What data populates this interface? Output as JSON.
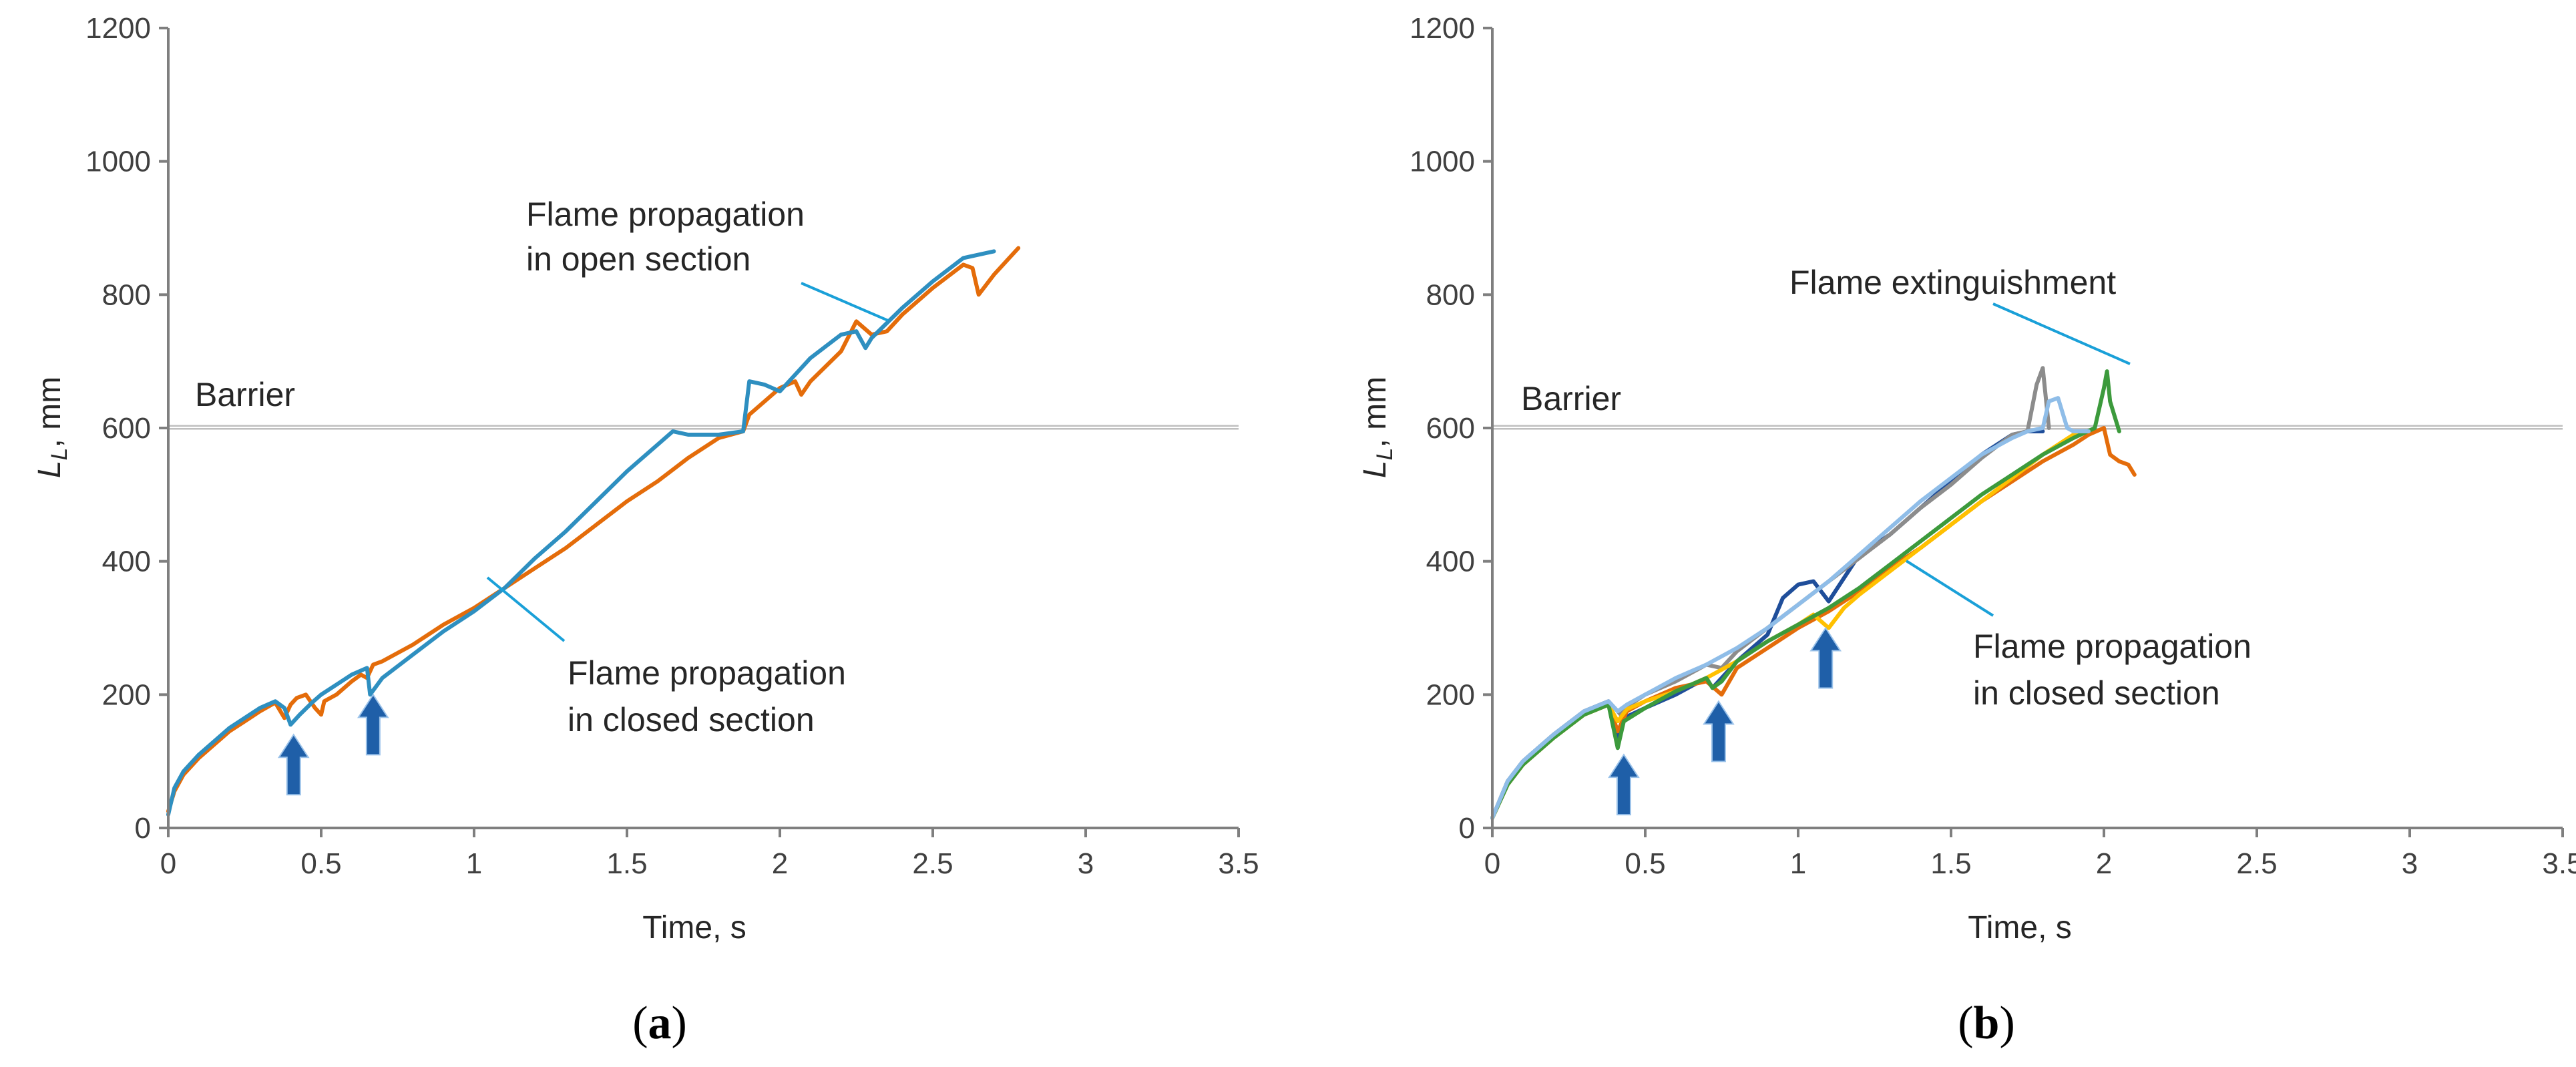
{
  "panels": [
    {
      "id": "a",
      "label_open": "(",
      "label_letter": "a",
      "label_close": ")"
    },
    {
      "id": "b",
      "label_open": "(",
      "label_letter": "b",
      "label_close": ")"
    }
  ],
  "colors": {
    "axis": "#7f7f7f",
    "barrier": "#bfbfbf",
    "arrow": "#1f5fa8",
    "leader": "#1aa0d8"
  },
  "chart_data": [
    {
      "type": "line",
      "title": "",
      "xlabel": "Time, s",
      "ylabel_main": "L",
      "ylabel_sub": "L",
      "ylabel_rest": ", mm",
      "xlim": [
        0,
        3.5
      ],
      "ylim": [
        0,
        1200
      ],
      "xticks": [
        0,
        0.5,
        1,
        1.5,
        2,
        2.5,
        3,
        3.5
      ],
      "xtick_labels": [
        "0",
        "0.5",
        "1",
        "1.5",
        "2",
        "2.5",
        "3",
        "3.5"
      ],
      "yticks": [
        0,
        200,
        400,
        600,
        800,
        1000,
        1200
      ],
      "ytick_labels": [
        "0",
        "200",
        "400",
        "600",
        "800",
        "1000",
        "1200"
      ],
      "barrier": {
        "y": 600,
        "label": "Barrier"
      },
      "series": [
        {
          "name": "orange",
          "color": "#e46c0a",
          "x": [
            0,
            0.02,
            0.05,
            0.1,
            0.15,
            0.2,
            0.25,
            0.3,
            0.35,
            0.38,
            0.4,
            0.42,
            0.45,
            0.48,
            0.5,
            0.51,
            0.55,
            0.6,
            0.63,
            0.65,
            0.67,
            0.7,
            0.8,
            0.9,
            1.0,
            1.1,
            1.2,
            1.3,
            1.4,
            1.5,
            1.6,
            1.7,
            1.8,
            1.88,
            1.9,
            1.95,
            2.0,
            2.05,
            2.07,
            2.1,
            2.2,
            2.25,
            2.3,
            2.35,
            2.4,
            2.5,
            2.6,
            2.63,
            2.65,
            2.7,
            2.75,
            2.78
          ],
          "y": [
            25,
            55,
            80,
            105,
            125,
            145,
            160,
            175,
            188,
            165,
            185,
            195,
            200,
            180,
            170,
            190,
            200,
            220,
            230,
            225,
            245,
            250,
            275,
            305,
            330,
            360,
            390,
            420,
            455,
            490,
            520,
            555,
            585,
            595,
            620,
            640,
            660,
            670,
            650,
            670,
            715,
            760,
            740,
            745,
            770,
            810,
            845,
            840,
            800,
            830,
            855,
            870
          ]
        },
        {
          "name": "blue",
          "color": "#2e8fc0",
          "x": [
            0,
            0.02,
            0.05,
            0.1,
            0.15,
            0.2,
            0.25,
            0.3,
            0.35,
            0.38,
            0.4,
            0.43,
            0.47,
            0.5,
            0.55,
            0.6,
            0.65,
            0.66,
            0.7,
            0.8,
            0.9,
            1.0,
            1.1,
            1.2,
            1.3,
            1.4,
            1.5,
            1.6,
            1.65,
            1.7,
            1.8,
            1.88,
            1.9,
            1.95,
            2.0,
            2.05,
            2.1,
            2.2,
            2.25,
            2.28,
            2.3,
            2.4,
            2.5,
            2.6,
            2.7
          ],
          "y": [
            20,
            60,
            85,
            110,
            130,
            150,
            165,
            180,
            190,
            180,
            155,
            170,
            188,
            200,
            215,
            230,
            240,
            200,
            225,
            260,
            295,
            325,
            360,
            405,
            445,
            490,
            535,
            575,
            595,
            590,
            590,
            595,
            670,
            665,
            655,
            680,
            705,
            740,
            745,
            720,
            735,
            780,
            820,
            855,
            865
          ]
        }
      ],
      "annotations": [
        {
          "id": "open",
          "lines": [
            "Flame propagation",
            "in open section"
          ]
        },
        {
          "id": "closed",
          "lines": [
            "Flame propagation",
            "in closed section"
          ]
        }
      ],
      "arrows": [
        {
          "x": 0.41,
          "y_tip": 140
        },
        {
          "x": 0.67,
          "y_tip": 200
        }
      ]
    },
    {
      "type": "line",
      "title": "",
      "xlabel": "Time, s",
      "ylabel_main": "L",
      "ylabel_sub": "L",
      "ylabel_rest": ", mm",
      "xlim": [
        0,
        3.5
      ],
      "ylim": [
        0,
        1200
      ],
      "xticks": [
        0,
        0.5,
        1,
        1.5,
        2,
        2.5,
        3,
        3.5
      ],
      "xtick_labels": [
        "0",
        "0.5",
        "1",
        "1.5",
        "2",
        "2.5",
        "3",
        "3.5"
      ],
      "yticks": [
        0,
        200,
        400,
        600,
        800,
        1000,
        1200
      ],
      "ytick_labels": [
        "0",
        "200",
        "400",
        "600",
        "800",
        "1000",
        "1200"
      ],
      "barrier": {
        "y": 600,
        "label": "Barrier"
      },
      "series": [
        {
          "name": "dark-blue",
          "color": "#1f4e9a",
          "x": [
            0,
            0.05,
            0.1,
            0.2,
            0.3,
            0.38,
            0.41,
            0.43,
            0.5,
            0.6,
            0.7,
            0.72,
            0.8,
            0.9,
            0.95,
            1.0,
            1.05,
            1.1,
            1.2,
            1.3,
            1.4,
            1.5,
            1.6,
            1.7,
            1.75,
            1.8
          ],
          "y": [
            15,
            70,
            100,
            140,
            175,
            190,
            130,
            165,
            180,
            200,
            225,
            210,
            250,
            290,
            345,
            365,
            370,
            340,
            410,
            440,
            480,
            520,
            560,
            590,
            595,
            595
          ]
        },
        {
          "name": "orange",
          "color": "#e46c0a",
          "x": [
            0,
            0.05,
            0.1,
            0.2,
            0.3,
            0.38,
            0.41,
            0.44,
            0.5,
            0.6,
            0.7,
            0.75,
            0.8,
            0.9,
            1.0,
            1.1,
            1.2,
            1.3,
            1.4,
            1.5,
            1.6,
            1.7,
            1.8,
            1.9,
            1.95,
            2.0,
            2.02,
            2.05,
            2.08,
            2.1
          ],
          "y": [
            15,
            65,
            95,
            135,
            170,
            185,
            145,
            175,
            190,
            210,
            220,
            200,
            240,
            270,
            300,
            325,
            355,
            390,
            420,
            455,
            490,
            520,
            550,
            575,
            590,
            600,
            560,
            550,
            545,
            530
          ]
        },
        {
          "name": "gray",
          "color": "#8c8c8c",
          "x": [
            0,
            0.05,
            0.1,
            0.2,
            0.3,
            0.38,
            0.42,
            0.45,
            0.5,
            0.6,
            0.7,
            0.75,
            0.8,
            0.9,
            1.0,
            1.1,
            1.2,
            1.3,
            1.4,
            1.5,
            1.6,
            1.7,
            1.75,
            1.78,
            1.8,
            1.82
          ],
          "y": [
            15,
            70,
            100,
            140,
            175,
            190,
            170,
            185,
            200,
            220,
            245,
            240,
            265,
            300,
            335,
            370,
            405,
            440,
            480,
            515,
            555,
            590,
            595,
            665,
            690,
            600
          ]
        },
        {
          "name": "yellow",
          "color": "#ffc000",
          "x": [
            0,
            0.05,
            0.1,
            0.2,
            0.3,
            0.38,
            0.41,
            0.44,
            0.5,
            0.6,
            0.7,
            0.8,
            0.9,
            1.0,
            1.05,
            1.1,
            1.15,
            1.2,
            1.3,
            1.4,
            1.5,
            1.6,
            1.7,
            1.8,
            1.9,
            1.95
          ],
          "y": [
            15,
            65,
            95,
            135,
            170,
            185,
            160,
            178,
            190,
            205,
            225,
            250,
            280,
            305,
            320,
            300,
            330,
            350,
            385,
            420,
            455,
            490,
            525,
            560,
            590,
            595
          ]
        },
        {
          "name": "green",
          "color": "#3c9a3c",
          "x": [
            0,
            0.05,
            0.1,
            0.2,
            0.3,
            0.38,
            0.41,
            0.43,
            0.5,
            0.6,
            0.7,
            0.72,
            0.75,
            0.8,
            0.9,
            1.0,
            1.1,
            1.2,
            1.3,
            1.4,
            1.5,
            1.6,
            1.7,
            1.8,
            1.9,
            1.97,
            2.0,
            2.01,
            2.02,
            2.05
          ],
          "y": [
            15,
            65,
            95,
            135,
            170,
            185,
            120,
            160,
            180,
            205,
            225,
            210,
            220,
            250,
            280,
            305,
            330,
            360,
            395,
            430,
            465,
            500,
            530,
            560,
            585,
            600,
            660,
            685,
            640,
            595
          ]
        },
        {
          "name": "light-blue",
          "color": "#8fbde8",
          "x": [
            0,
            0.05,
            0.1,
            0.2,
            0.3,
            0.38,
            0.41,
            0.44,
            0.5,
            0.6,
            0.7,
            0.8,
            0.9,
            1.0,
            1.1,
            1.2,
            1.3,
            1.4,
            1.5,
            1.6,
            1.7,
            1.75,
            1.8,
            1.82,
            1.85,
            1.88,
            1.9,
            1.95
          ],
          "y": [
            15,
            70,
            100,
            140,
            175,
            190,
            175,
            185,
            200,
            225,
            245,
            270,
            300,
            335,
            370,
            410,
            450,
            490,
            525,
            560,
            585,
            595,
            600,
            640,
            645,
            600,
            595,
            595
          ]
        }
      ],
      "annotations": [
        {
          "id": "extinguishment",
          "lines": [
            "Flame extinguishment"
          ]
        },
        {
          "id": "closed",
          "lines": [
            "Flame propagation",
            "in closed section"
          ]
        }
      ],
      "arrows": [
        {
          "x": 0.43,
          "y_tip": 110
        },
        {
          "x": 0.74,
          "y_tip": 190
        },
        {
          "x": 1.09,
          "y_tip": 300
        }
      ]
    }
  ]
}
